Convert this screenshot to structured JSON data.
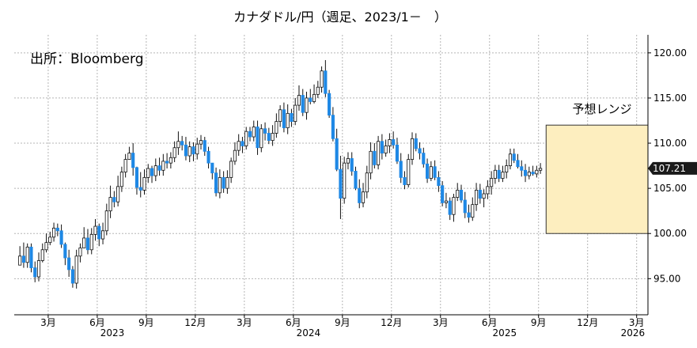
{
  "chart_data": {
    "type": "candlestick",
    "title": "カナダドル/円（週足、2023/1－　）",
    "annotation_source": "出所：Bloomberg",
    "forecast_label": "予想レンジ",
    "forecast_range": {
      "low": 100.0,
      "high": 112.0,
      "start": "2025-09",
      "end": "2026-03"
    },
    "last_value_label": "107.21",
    "last_value": 107.21,
    "ylim": [
      91.0,
      122.0
    ],
    "grid": true,
    "y_ticks": [
      "95.00",
      "100.00",
      "105.00",
      "110.00",
      "115.00",
      "120.00"
    ],
    "y_tick_values": [
      95,
      100,
      105,
      110,
      115,
      120
    ],
    "x_ticks": [
      "3月",
      "6月",
      "9月",
      "12月",
      "3月",
      "6月",
      "9月",
      "12月",
      "3月",
      "6月",
      "9月",
      "12月",
      "3月"
    ],
    "x_tick_weeks": [
      9,
      22,
      35,
      48,
      61,
      74,
      87,
      100,
      113,
      126,
      139,
      152,
      165
    ],
    "year_labels": [
      "2023",
      "2024",
      "2025",
      "2026"
    ],
    "year_label_weeks": [
      26,
      78,
      130,
      164
    ],
    "x_range_weeks": [
      0,
      168
    ],
    "up_color": "#ffffff",
    "down_color": "#1e88e5",
    "forecast_fill": "#fdeebf",
    "forecast_stroke": "#333333",
    "closes": [
      97.5,
      96.8,
      98.5,
      96.2,
      95.2,
      97.0,
      98.2,
      99.0,
      99.6,
      100.6,
      100.3,
      98.8,
      97.3,
      96.0,
      94.5,
      97.5,
      98.4,
      99.5,
      98.2,
      99.9,
      100.8,
      99.4,
      100.3,
      102.5,
      104.0,
      103.5,
      105.2,
      106.8,
      108.2,
      108.9,
      107.3,
      105.1,
      104.8,
      106.2,
      107.2,
      106.4,
      107.5,
      107.0,
      108.0,
      107.8,
      108.4,
      109.5,
      110.2,
      109.8,
      108.6,
      109.6,
      108.8,
      109.9,
      110.3,
      109.1,
      107.8,
      106.7,
      104.5,
      106.2,
      105.0,
      106.2,
      108.0,
      109.2,
      110.2,
      109.7,
      111.3,
      110.7,
      111.8,
      109.5,
      111.6,
      111.1,
      110.3,
      111.1,
      112.4,
      113.7,
      111.7,
      113.3,
      112.4,
      114.2,
      115.3,
      113.4,
      115.0,
      114.6,
      115.4,
      116.2,
      118.0,
      115.5,
      113.1,
      110.5,
      107.1,
      103.9,
      107.8,
      108.3,
      106.9,
      105.0,
      103.4,
      104.6,
      106.7,
      109.1,
      107.6,
      110.2,
      108.9,
      109.7,
      110.4,
      109.8,
      108.0,
      106.2,
      105.4,
      108.2,
      110.5,
      109.4,
      108.9,
      107.7,
      106.1,
      107.4,
      106.2,
      105.3,
      103.4,
      103.6,
      102.1,
      104.0,
      104.8,
      103.7,
      102.3,
      101.8,
      103.2,
      104.8,
      103.9,
      104.4,
      105.2,
      106.1,
      107.0,
      106.1,
      106.8,
      107.5,
      108.8,
      108.1,
      107.4,
      107.0,
      106.4,
      106.8,
      106.6,
      107.0,
      107.21
    ],
    "highs": [
      98.6,
      99.0,
      98.9,
      98.9,
      96.9,
      97.9,
      98.9,
      100.0,
      100.2,
      101.2,
      101.1,
      101.0,
      99.0,
      98.2,
      96.4,
      98.2,
      98.9,
      100.7,
      100.5,
      100.6,
      101.6,
      101.1,
      101.2,
      103.3,
      105.3,
      104.7,
      106.4,
      107.4,
      108.8,
      109.6,
      110.0,
      107.4,
      106.8,
      107.1,
      107.7,
      107.5,
      108.3,
      108.4,
      108.8,
      108.9,
      109.0,
      110.2,
      111.3,
      110.8,
      110.7,
      110.2,
      110.1,
      110.6,
      110.9,
      110.7,
      109.6,
      107.8,
      107.3,
      107.1,
      106.9,
      107.0,
      108.4,
      110.1,
      111.0,
      110.7,
      111.8,
      111.8,
      112.5,
      112.5,
      112.1,
      112.3,
      111.7,
      112.0,
      113.3,
      114.2,
      114.5,
      114.3,
      113.8,
      115.0,
      116.4,
      116.0,
      115.7,
      116.0,
      116.5,
      116.9,
      118.5,
      119.2,
      115.9,
      114.0,
      111.6,
      108.6,
      108.5,
      109.0,
      109.0,
      107.4,
      106.0,
      105.6,
      107.5,
      110.1,
      110.0,
      110.8,
      111.0,
      110.4,
      111.1,
      111.3,
      110.6,
      108.9,
      106.9,
      108.8,
      111.2,
      111.1,
      110.1,
      109.5,
      108.3,
      108.0,
      108.1,
      106.9,
      105.8,
      104.5,
      104.0,
      104.4,
      105.6,
      105.4,
      104.6,
      103.2,
      104.0,
      105.6,
      105.5,
      104.9,
      105.9,
      106.9,
      107.6,
      107.6,
      107.5,
      108.2,
      109.4,
      109.4,
      108.8,
      108.1,
      107.7,
      107.4,
      107.5,
      107.5,
      107.8
    ],
    "lows": [
      96.6,
      96.2,
      96.2,
      95.7,
      94.6,
      94.7,
      96.8,
      97.9,
      98.7,
      99.1,
      99.7,
      98.4,
      96.5,
      95.2,
      94.0,
      93.9,
      96.8,
      98.7,
      97.7,
      97.7,
      99.2,
      98.6,
      98.8,
      99.8,
      101.7,
      102.9,
      103.0,
      104.6,
      106.2,
      108.2,
      106.4,
      104.3,
      104.0,
      104.3,
      105.6,
      105.6,
      105.8,
      106.4,
      106.4,
      107.2,
      107.2,
      107.9,
      108.7,
      109.2,
      108.1,
      107.9,
      108.0,
      108.2,
      109.3,
      108.6,
      107.2,
      106.0,
      104.1,
      103.9,
      104.5,
      104.4,
      105.6,
      107.6,
      108.6,
      108.9,
      109.3,
      110.2,
      110.2,
      108.7,
      109.0,
      110.3,
      109.9,
      109.7,
      110.6,
      111.8,
      111.2,
      111.0,
      111.8,
      112.0,
      113.6,
      113.0,
      112.6,
      114.3,
      114.4,
      115.0,
      115.6,
      115.1,
      112.8,
      110.2,
      106.9,
      101.6,
      103.3,
      107.1,
      106.4,
      104.8,
      102.8,
      102.9,
      103.9,
      106.0,
      107.2,
      107.1,
      108.2,
      108.5,
      108.9,
      109.4,
      107.7,
      105.6,
      104.9,
      105.1,
      107.6,
      109.1,
      108.2,
      107.3,
      105.6,
      105.8,
      105.9,
      104.6,
      103.0,
      102.8,
      101.5,
      101.3,
      103.6,
      103.4,
      101.7,
      101.2,
      101.4,
      102.5,
      103.3,
      102.9,
      103.8,
      104.3,
      105.5,
      105.7,
      105.7,
      106.1,
      107.1,
      107.8,
      107.2,
      106.3,
      105.7,
      106.0,
      106.4,
      106.2,
      106.6
    ],
    "open_first": 96.5
  }
}
